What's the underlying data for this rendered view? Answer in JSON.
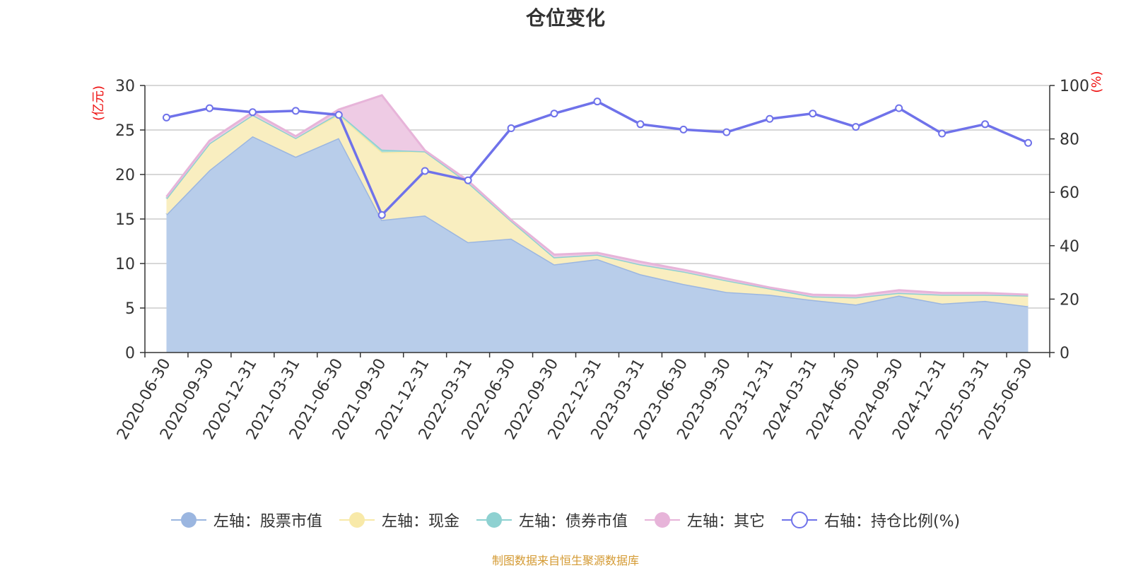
{
  "chart_data": {
    "type": "area",
    "title": "仓位变化",
    "left_unit": "(亿元)",
    "right_unit": "(%)",
    "categories": [
      "2020-06-30",
      "2020-09-30",
      "2020-12-31",
      "2021-03-31",
      "2021-06-30",
      "2021-09-30",
      "2021-12-31",
      "2022-03-31",
      "2022-06-30",
      "2022-09-30",
      "2022-12-31",
      "2023-03-31",
      "2023-06-30",
      "2023-09-30",
      "2023-12-31",
      "2024-03-31",
      "2024-06-30",
      "2024-09-30",
      "2024-12-31",
      "2025-03-31",
      "2025-06-30"
    ],
    "ylim_left": [
      0,
      30
    ],
    "yticks_left": [
      0,
      5,
      10,
      15,
      20,
      25,
      30
    ],
    "ylim_right": [
      0,
      100
    ],
    "yticks_right": [
      0,
      20,
      40,
      60,
      80,
      100
    ],
    "stacked": true,
    "grid": true,
    "legend_position": "bottom",
    "series": [
      {
        "name": "左轴：股票市值",
        "axis": "left",
        "color": "#9bb6e0",
        "fill": "#b8cdea",
        "values": [
          15.5,
          20.5,
          24.3,
          22.0,
          24.1,
          14.9,
          15.4,
          12.4,
          12.8,
          9.9,
          10.5,
          8.8,
          7.7,
          6.8,
          6.5,
          5.9,
          5.4,
          6.4,
          5.5,
          5.8,
          5.2
        ]
      },
      {
        "name": "左轴：现金",
        "axis": "left",
        "color": "#f8e9a8",
        "fill": "#f9eec0",
        "values": [
          1.8,
          3.0,
          2.4,
          2.1,
          2.6,
          7.6,
          7.2,
          6.7,
          2.0,
          0.8,
          0.5,
          1.1,
          1.4,
          1.3,
          0.7,
          0.4,
          0.8,
          0.3,
          1.0,
          0.7,
          1.2
        ]
      },
      {
        "name": "左轴：债券市值",
        "axis": "left",
        "color": "#8ed1d1",
        "fill": "#a9dcd6",
        "values": [
          0,
          0,
          0,
          0,
          0.2,
          0.3,
          0,
          0,
          0,
          0,
          0,
          0,
          0,
          0,
          0,
          0,
          0,
          0,
          0,
          0,
          0
        ]
      },
      {
        "name": "左轴：其它",
        "axis": "left",
        "color": "#e7b4d9",
        "fill": "#eecbe4",
        "values": [
          0.2,
          0.3,
          0.3,
          0.2,
          0.4,
          6.1,
          0.1,
          0.2,
          0.1,
          0.3,
          0.2,
          0.3,
          0.2,
          0.2,
          0.1,
          0.2,
          0.2,
          0.3,
          0.2,
          0.2,
          0.1
        ]
      },
      {
        "name": "右轴：持仓比例(%)",
        "axis": "right",
        "color": "#6f72ea",
        "values": [
          88.0,
          91.5,
          90.0,
          90.5,
          89.0,
          51.5,
          68.0,
          64.5,
          84.0,
          89.5,
          94.0,
          85.5,
          83.5,
          82.5,
          87.5,
          89.5,
          84.5,
          91.5,
          82.0,
          85.5,
          78.5
        ]
      }
    ]
  },
  "source_note": "制图数据来自恒生聚源数据库"
}
